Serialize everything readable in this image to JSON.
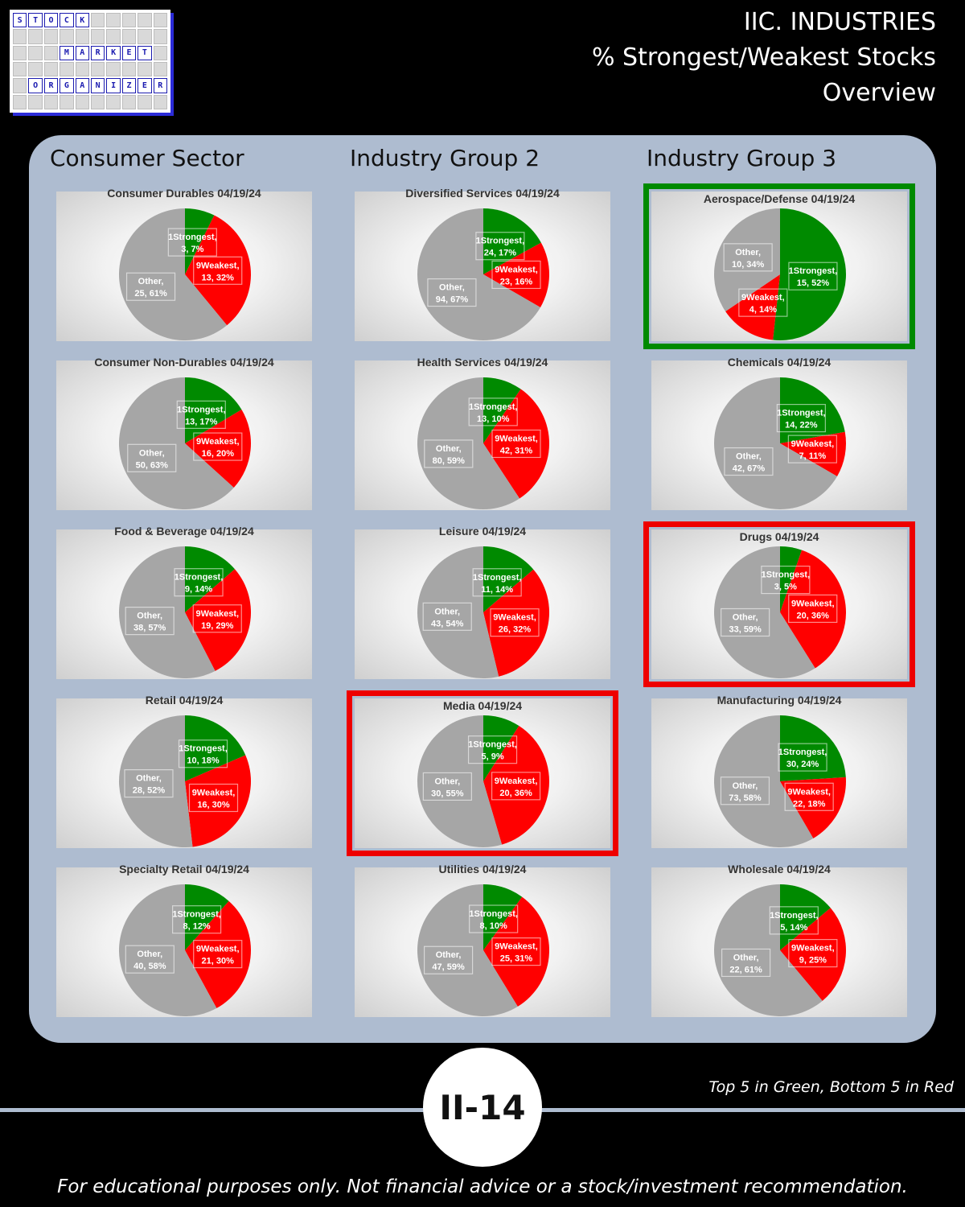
{
  "logo": {
    "row1": [
      "S",
      "T",
      "O",
      "C",
      "K"
    ],
    "row3": [
      "M",
      "A",
      "R",
      "K",
      "E",
      "T"
    ],
    "row5": [
      "O",
      "R",
      "G",
      "A",
      "N",
      "I",
      "Z",
      "E",
      "R"
    ]
  },
  "header": {
    "line1": "IIC. INDUSTRIES",
    "line2": "% Strongest/Weakest Stocks",
    "line3": "Overview"
  },
  "columns": [
    "Consumer Sector",
    "Industry Group 2",
    "Industry Group 3"
  ],
  "colors": {
    "strongest": "#008a00",
    "weakest": "#ff0000",
    "other": "#a6a6a6",
    "panel": "#aebcd0"
  },
  "chart_data": [
    {
      "type": "pie",
      "title": "Consumer Durables 04/19/24",
      "col": 0,
      "row": 0,
      "highlight": "",
      "slices": [
        {
          "label": "1Strongest",
          "value": 3,
          "pct": "7%"
        },
        {
          "label": "9Weakest",
          "value": 13,
          "pct": "32%"
        },
        {
          "label": "Other",
          "value": 25,
          "pct": "61%"
        }
      ]
    },
    {
      "type": "pie",
      "title": "Consumer Non-Durables 04/19/24",
      "col": 0,
      "row": 1,
      "highlight": "",
      "slices": [
        {
          "label": "1Strongest",
          "value": 13,
          "pct": "17%"
        },
        {
          "label": "9Weakest",
          "value": 16,
          "pct": "20%"
        },
        {
          "label": "Other",
          "value": 50,
          "pct": "63%"
        }
      ]
    },
    {
      "type": "pie",
      "title": "Food & Beverage 04/19/24",
      "col": 0,
      "row": 2,
      "highlight": "",
      "slices": [
        {
          "label": "1Strongest",
          "value": 9,
          "pct": "14%"
        },
        {
          "label": "9Weakest",
          "value": 19,
          "pct": "29%"
        },
        {
          "label": "Other",
          "value": 38,
          "pct": "57%"
        }
      ]
    },
    {
      "type": "pie",
      "title": "Retail 04/19/24",
      "col": 0,
      "row": 3,
      "highlight": "",
      "slices": [
        {
          "label": "1Strongest",
          "value": 10,
          "pct": "18%"
        },
        {
          "label": "9Weakest",
          "value": 16,
          "pct": "30%"
        },
        {
          "label": "Other",
          "value": 28,
          "pct": "52%"
        }
      ]
    },
    {
      "type": "pie",
      "title": "Specialty Retail 04/19/24",
      "col": 0,
      "row": 4,
      "highlight": "",
      "slices": [
        {
          "label": "1Strongest",
          "value": 8,
          "pct": "12%"
        },
        {
          "label": "9Weakest",
          "value": 21,
          "pct": "30%"
        },
        {
          "label": "Other",
          "value": 40,
          "pct": "58%"
        }
      ]
    },
    {
      "type": "pie",
      "title": "Diversified Services 04/19/24",
      "col": 1,
      "row": 0,
      "highlight": "",
      "slices": [
        {
          "label": "1Strongest",
          "value": 24,
          "pct": "17%"
        },
        {
          "label": "9Weakest",
          "value": 23,
          "pct": "16%"
        },
        {
          "label": "Other",
          "value": 94,
          "pct": "67%"
        }
      ]
    },
    {
      "type": "pie",
      "title": "Health Services 04/19/24",
      "col": 1,
      "row": 1,
      "highlight": "",
      "slices": [
        {
          "label": "1Strongest",
          "value": 13,
          "pct": "10%"
        },
        {
          "label": "9Weakest",
          "value": 42,
          "pct": "31%"
        },
        {
          "label": "Other",
          "value": 80,
          "pct": "59%"
        }
      ]
    },
    {
      "type": "pie",
      "title": "Leisure 04/19/24",
      "col": 1,
      "row": 2,
      "highlight": "",
      "slices": [
        {
          "label": "1Strongest",
          "value": 11,
          "pct": "14%"
        },
        {
          "label": "9Weakest",
          "value": 26,
          "pct": "32%"
        },
        {
          "label": "Other",
          "value": 43,
          "pct": "54%"
        }
      ]
    },
    {
      "type": "pie",
      "title": "Media 04/19/24",
      "col": 1,
      "row": 3,
      "highlight": "red",
      "slices": [
        {
          "label": "1Strongest",
          "value": 5,
          "pct": "9%"
        },
        {
          "label": "9Weakest",
          "value": 20,
          "pct": "36%"
        },
        {
          "label": "Other",
          "value": 30,
          "pct": "55%"
        }
      ]
    },
    {
      "type": "pie",
      "title": "Utilities 04/19/24",
      "col": 1,
      "row": 4,
      "highlight": "",
      "slices": [
        {
          "label": "1Strongest",
          "value": 8,
          "pct": "10%"
        },
        {
          "label": "9Weakest",
          "value": 25,
          "pct": "31%"
        },
        {
          "label": "Other",
          "value": 47,
          "pct": "59%"
        }
      ]
    },
    {
      "type": "pie",
      "title": "Aerospace/Defense 04/19/24",
      "col": 2,
      "row": 0,
      "highlight": "green",
      "slices": [
        {
          "label": "1Strongest",
          "value": 15,
          "pct": "52%"
        },
        {
          "label": "9Weakest",
          "value": 4,
          "pct": "14%"
        },
        {
          "label": "Other",
          "value": 10,
          "pct": "34%"
        }
      ]
    },
    {
      "type": "pie",
      "title": "Chemicals 04/19/24",
      "col": 2,
      "row": 1,
      "highlight": "",
      "slices": [
        {
          "label": "1Strongest",
          "value": 14,
          "pct": "22%"
        },
        {
          "label": "9Weakest",
          "value": 7,
          "pct": "11%"
        },
        {
          "label": "Other",
          "value": 42,
          "pct": "67%"
        }
      ]
    },
    {
      "type": "pie",
      "title": "Drugs 04/19/24",
      "col": 2,
      "row": 2,
      "highlight": "red",
      "slices": [
        {
          "label": "1Strongest",
          "value": 3,
          "pct": "5%"
        },
        {
          "label": "9Weakest",
          "value": 20,
          "pct": "36%"
        },
        {
          "label": "Other",
          "value": 33,
          "pct": "59%"
        }
      ]
    },
    {
      "type": "pie",
      "title": "Manufacturing 04/19/24",
      "col": 2,
      "row": 3,
      "highlight": "",
      "slices": [
        {
          "label": "1Strongest",
          "value": 30,
          "pct": "24%"
        },
        {
          "label": "9Weakest",
          "value": 22,
          "pct": "18%"
        },
        {
          "label": "Other",
          "value": 73,
          "pct": "58%"
        }
      ]
    },
    {
      "type": "pie",
      "title": "Wholesale 04/19/24",
      "col": 2,
      "row": 4,
      "highlight": "",
      "slices": [
        {
          "label": "1Strongest",
          "value": 5,
          "pct": "14%"
        },
        {
          "label": "9Weakest",
          "value": 9,
          "pct": "25%"
        },
        {
          "label": "Other",
          "value": 22,
          "pct": "61%"
        }
      ]
    }
  ],
  "footer": {
    "legend_note": "Top 5 in Green, Bottom 5 in Red",
    "page_number": "II-14",
    "disclaimer": "For educational purposes only. Not financial advice or a stock/investment recommendation."
  }
}
